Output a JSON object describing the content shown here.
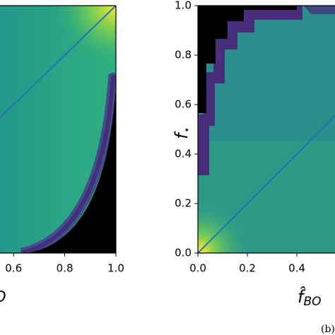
{
  "chart_data": [
    {
      "type": "heatmap",
      "xlim": [
        0,
        1
      ],
      "ylim": [
        0,
        1
      ],
      "xticks": [
        0.6,
        0.8,
        {
          "value": 1.0,
          "label": "1.0"
        }
      ],
      "xlabel": "O"
    },
    {
      "type": "heatmap",
      "xlim": [
        0,
        1
      ],
      "ylim": [
        0,
        1
      ],
      "xticks": [
        {
          "value": 0.0,
          "label": "0.0"
        },
        0.2,
        0.4
      ],
      "yticks": [
        {
          "value": 0.0,
          "label": "0.0"
        },
        0.2,
        0.4,
        0.6,
        0.8,
        {
          "value": 1.0,
          "label": "1.0"
        }
      ],
      "xlabel": "f̂",
      "xlabel_sub": "BO",
      "ylabel": "f",
      "ylabel_sub": "⋆",
      "caption": "(b)"
    }
  ]
}
